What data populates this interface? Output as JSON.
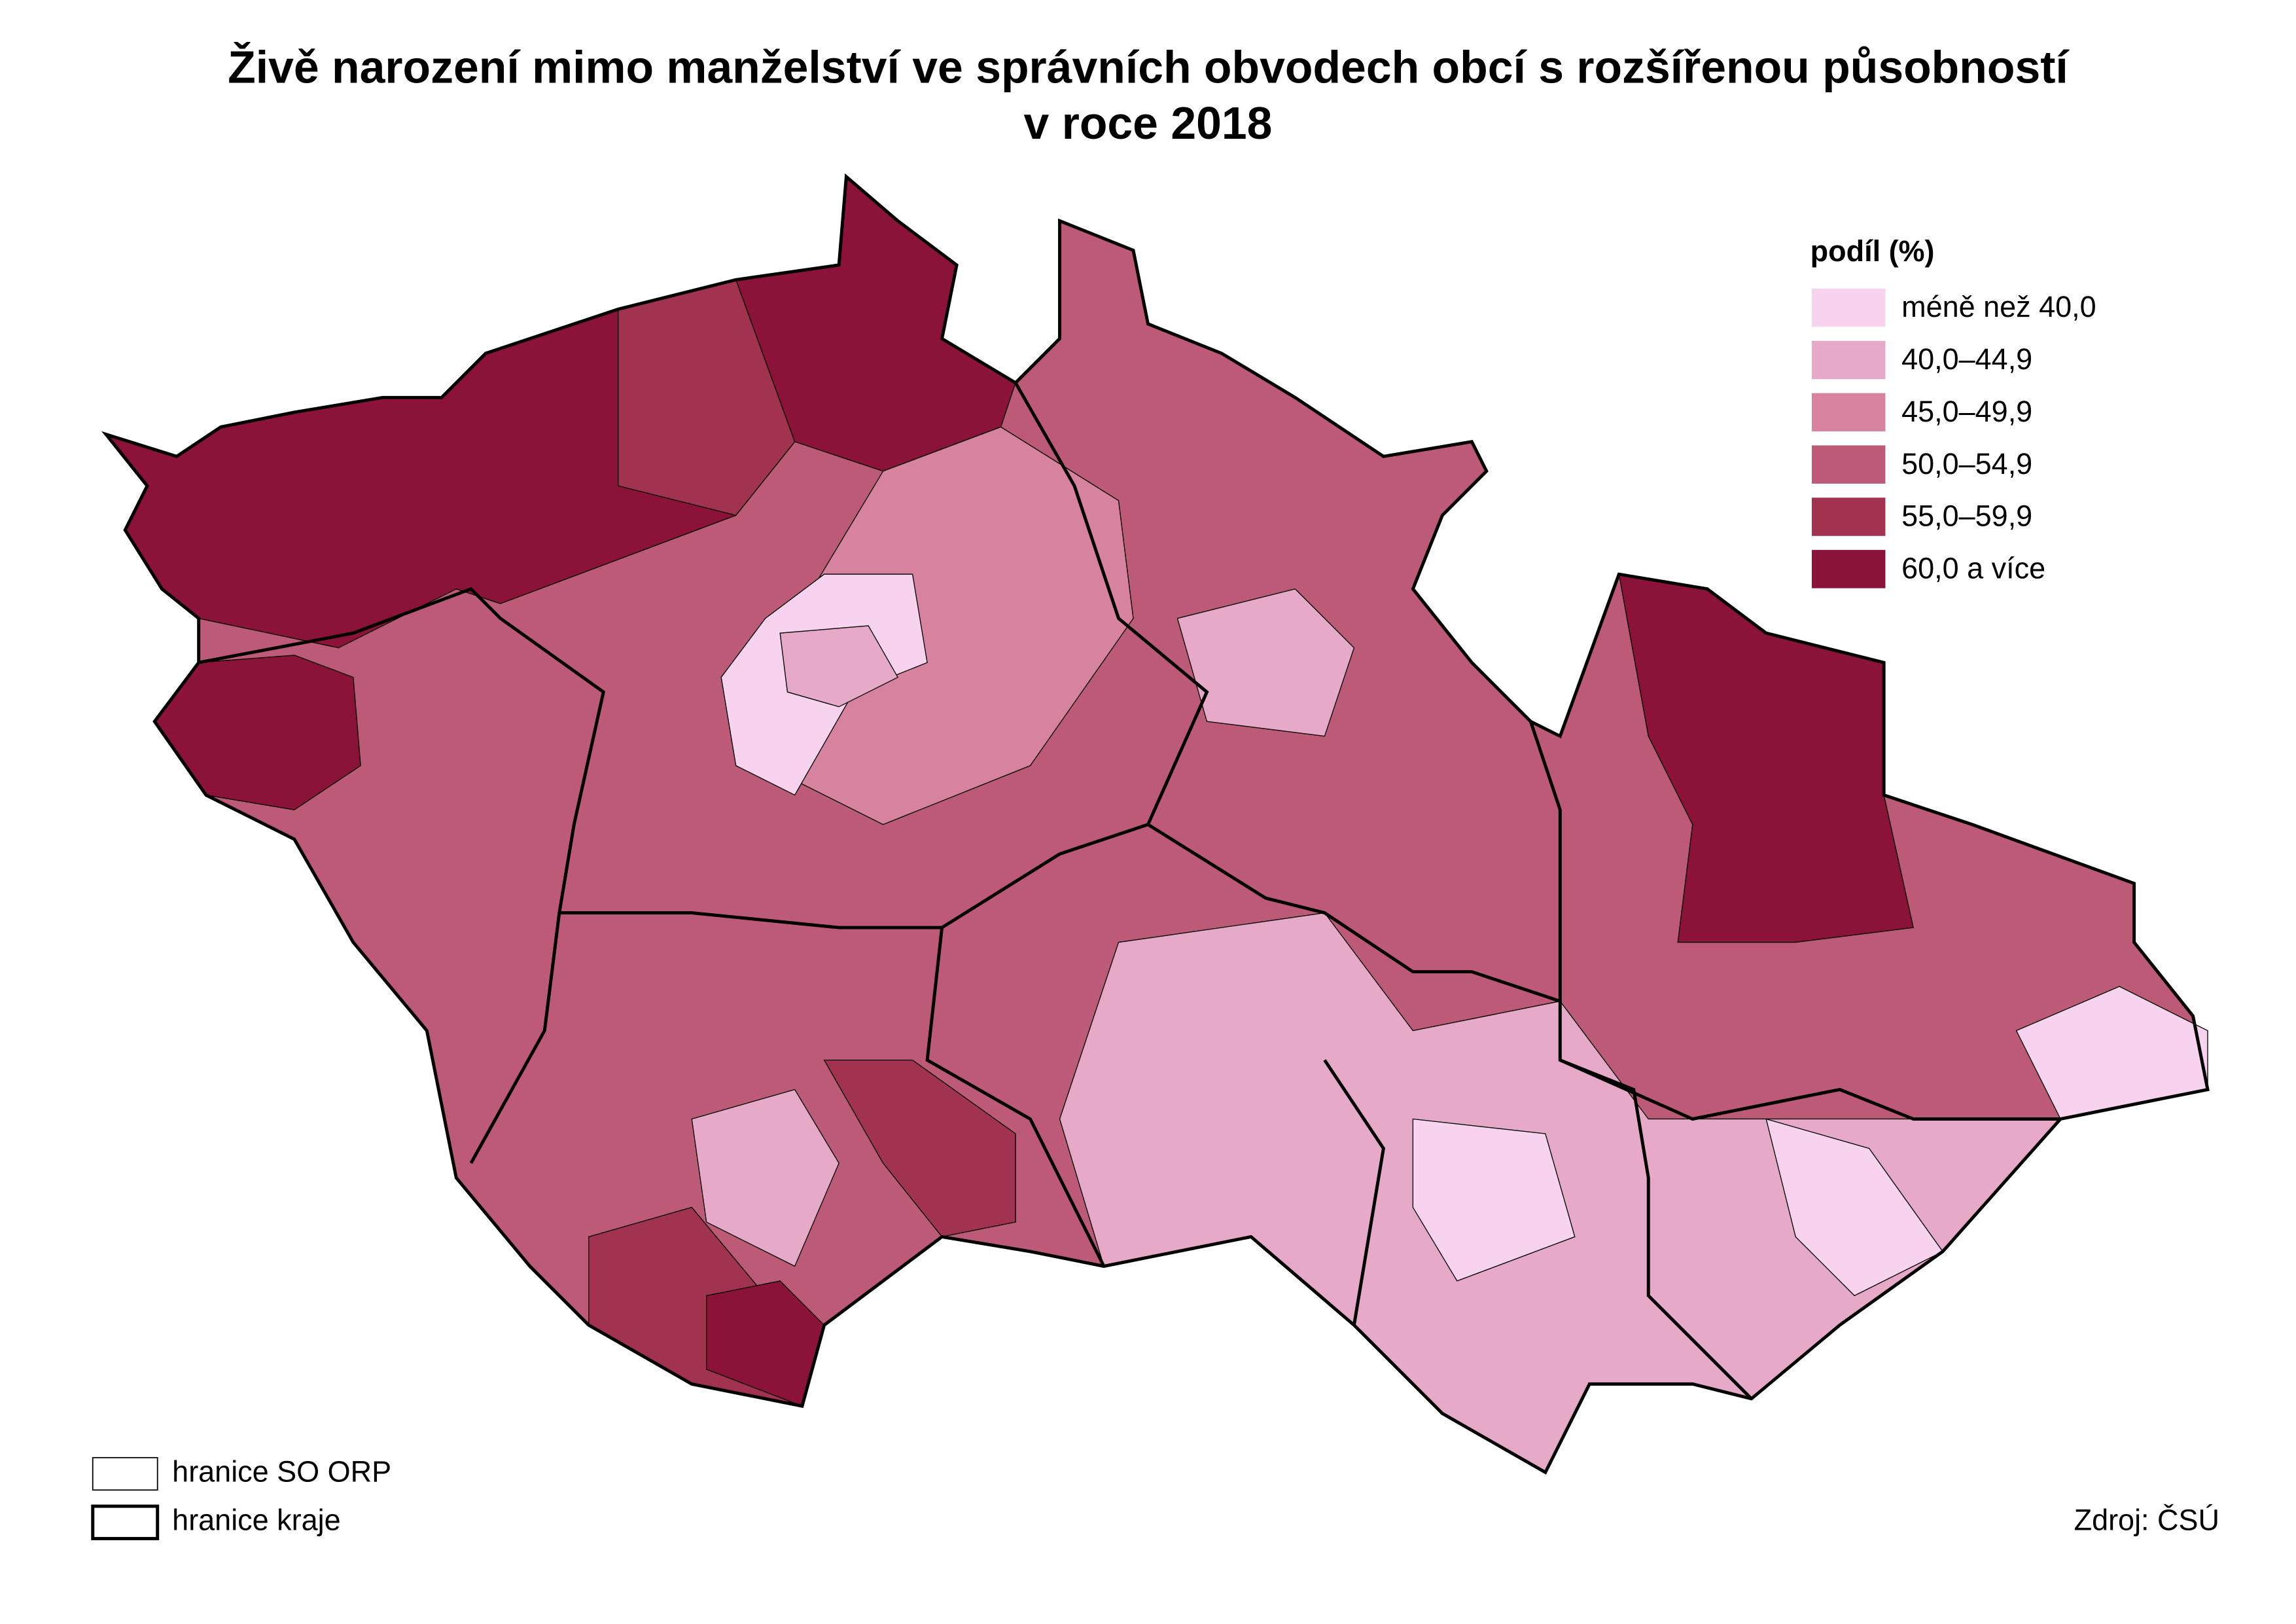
{
  "title": [
    "Živě narození mimo manželství ve správních obvodech obcí s rozšířenou působností",
    "v roce 2018"
  ],
  "legend": {
    "title": "podíl (%)",
    "items": [
      {
        "label": "méně než 40,0",
        "color": "#f8d3f0"
      },
      {
        "label": "40,0–44,9",
        "color": "#e6a9c8"
      },
      {
        "label": "45,0–49,9",
        "color": "#d7829f"
      },
      {
        "label": "50,0–54,9",
        "color": "#bd5a78"
      },
      {
        "label": "55,0–59,9",
        "color": "#a13350"
      },
      {
        "label": "60,0 a více",
        "color": "#8b1238"
      }
    ]
  },
  "borders": [
    {
      "label": "hranice SO ORP"
    },
    {
      "label": "hranice kraje"
    }
  ],
  "source": "Zdroj: ČSÚ"
}
